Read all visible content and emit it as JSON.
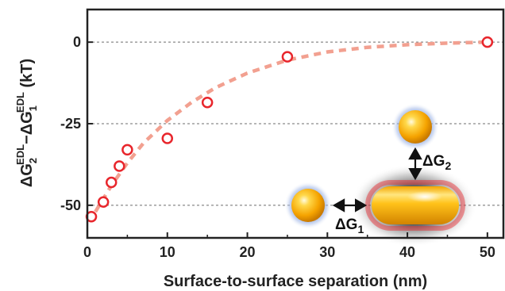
{
  "chart_data": {
    "type": "scatter",
    "xlabel": "Surface-to-surface separation (nm)",
    "ylabel": {
      "prefix": "ΔG",
      "sub2": "2",
      "sup2": "EDL",
      "minus": "−ΔG",
      "sub1": "1",
      "sup1": "EDL",
      "unit": " (kT)"
    },
    "xlim": [
      0,
      52
    ],
    "ylim": [
      -60,
      10
    ],
    "xticks": [
      0,
      10,
      20,
      30,
      40,
      50
    ],
    "yticks": [
      0,
      -25,
      -50
    ],
    "grid_y": [
      0,
      -25,
      -50
    ],
    "series": [
      {
        "marker": "open-circle",
        "color": "#e8262c",
        "points": [
          {
            "x": 0.5,
            "y": -53.5
          },
          {
            "x": 2,
            "y": -49
          },
          {
            "x": 3,
            "y": -43
          },
          {
            "x": 4,
            "y": -38
          },
          {
            "x": 5,
            "y": -33
          },
          {
            "x": 10,
            "y": -29.5
          },
          {
            "x": 15,
            "y": -18.5
          },
          {
            "x": 25,
            "y": -4.5
          },
          {
            "x": 50,
            "y": 0
          }
        ]
      }
    ],
    "fit": {
      "style": "dashed",
      "color": "#f2a090",
      "x": [
        1,
        3,
        5,
        7,
        10,
        13,
        16,
        20,
        25,
        30,
        35,
        40,
        45,
        50
      ],
      "y": [
        -52,
        -44,
        -37,
        -31,
        -24,
        -18.5,
        -14,
        -9.5,
        -5.5,
        -3,
        -1.6,
        -0.8,
        -0.3,
        0
      ]
    },
    "inset": {
      "label_g1": "ΔG",
      "label_g1_sub": "1",
      "label_g2": "ΔG",
      "label_g2_sub": "2"
    }
  }
}
